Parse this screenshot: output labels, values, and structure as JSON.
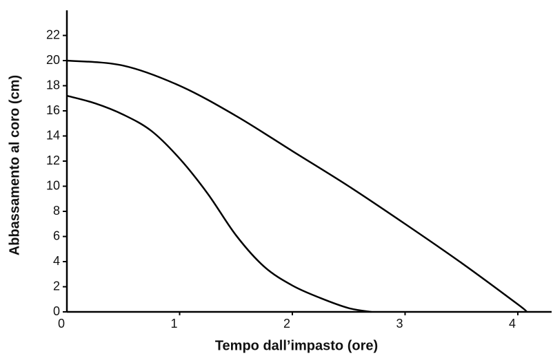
{
  "chart_data": {
    "type": "line",
    "xlabel": "Tempo dall’impasto (ore)",
    "ylabel": "Abbassamento al coro (cm)",
    "xlim": [
      0,
      4.3
    ],
    "ylim": [
      0,
      24
    ],
    "xticks": [
      0,
      1,
      2,
      3,
      4
    ],
    "yticks": [
      0,
      2,
      4,
      6,
      8,
      10,
      12,
      14,
      16,
      18,
      20,
      22
    ],
    "series": [
      {
        "color": "#000000",
        "x": [
          0,
          0.5,
          1,
          1.5,
          2,
          2.5,
          3,
          3.5,
          4,
          4.08
        ],
        "values": [
          20,
          19.6,
          18,
          15.6,
          12.8,
          10,
          7,
          3.9,
          0.6,
          0
        ]
      },
      {
        "color": "#000000",
        "x": [
          0,
          0.25,
          0.5,
          0.75,
          1,
          1.25,
          1.5,
          1.75,
          2,
          2.25,
          2.5,
          2.7
        ],
        "values": [
          17.2,
          16.6,
          15.7,
          14.4,
          12.2,
          9.4,
          6.1,
          3.6,
          2.1,
          1.1,
          0.3,
          0
        ]
      }
    ]
  }
}
